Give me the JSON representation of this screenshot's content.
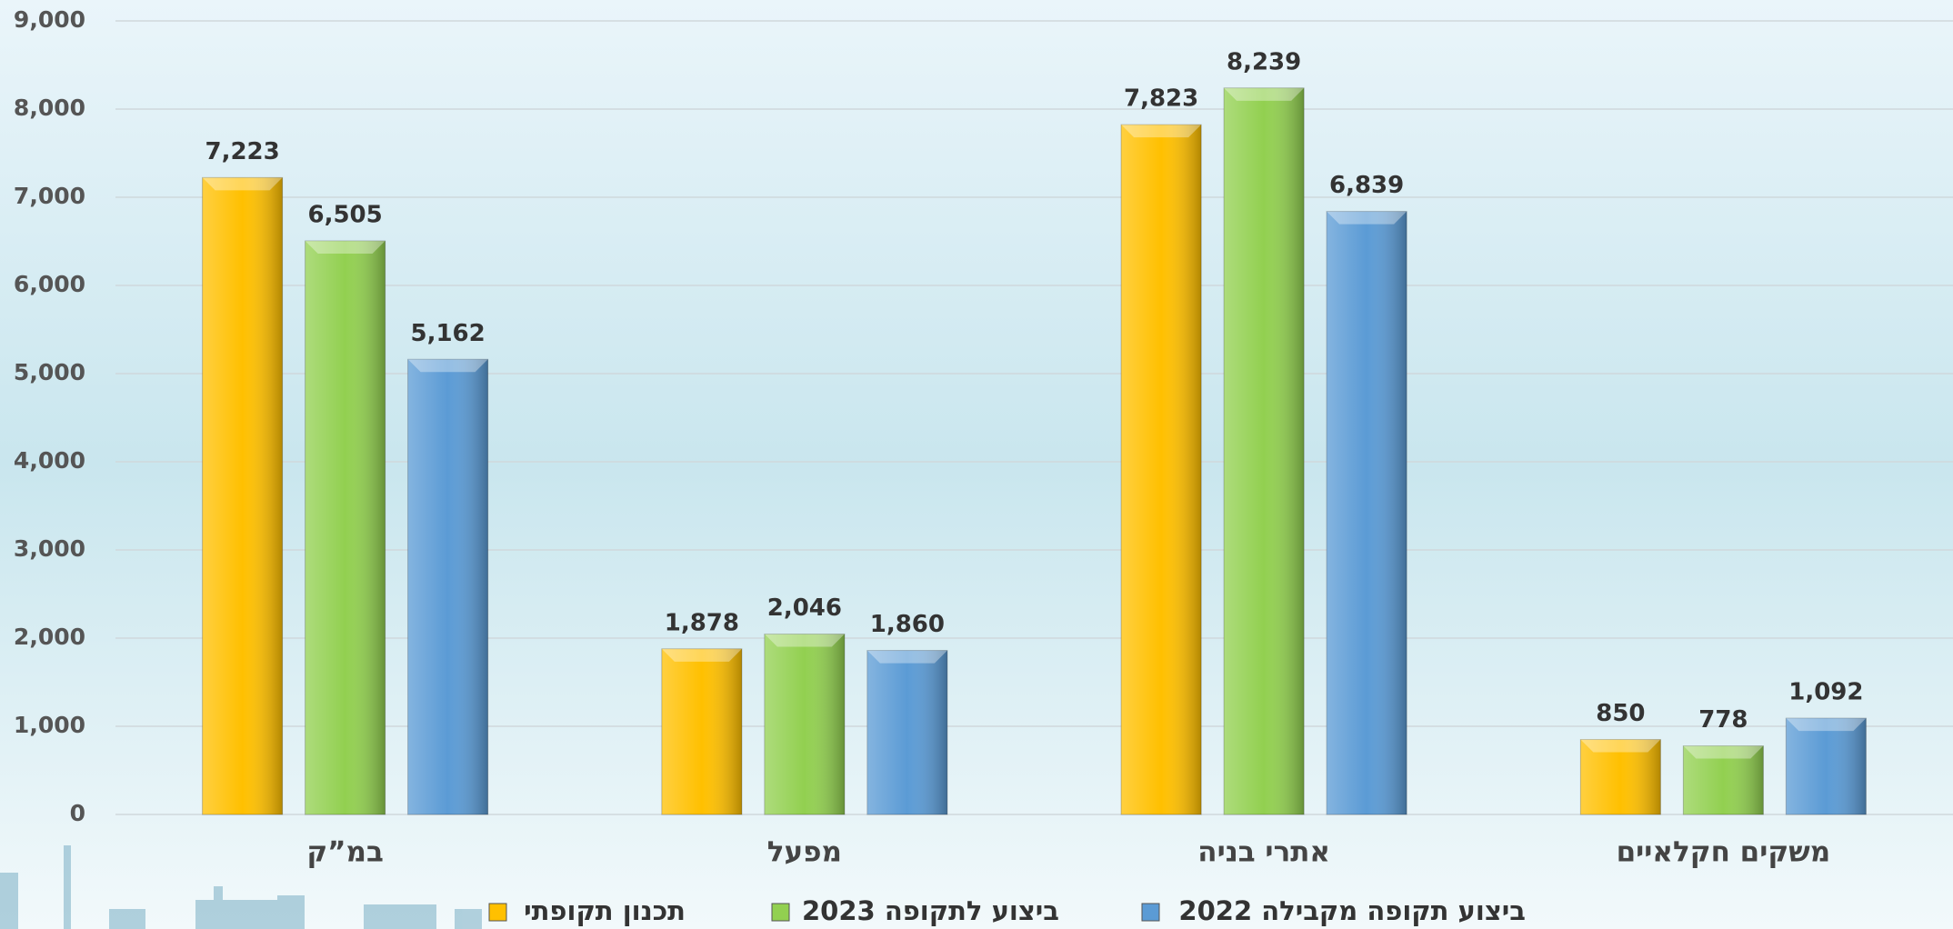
{
  "chart_data": {
    "type": "bar",
    "categories": [
      "במ”ק",
      "מפעל",
      "אתרי בניה",
      "משקים חקלאיים"
    ],
    "series": [
      {
        "name": "תכנון תקופתי",
        "color": "#ffc000",
        "values": [
          7223,
          1878,
          7823,
          850
        ],
        "value_labels": [
          "7,223",
          "1,878",
          "7,823",
          "850"
        ]
      },
      {
        "name": "ביצוע לתקופה 2023",
        "color": "#92d050",
        "values": [
          6505,
          2046,
          8239,
          778
        ],
        "value_labels": [
          "6,505",
          "2,046",
          "8,239",
          "778"
        ]
      },
      {
        "name": "ביצוע תקופה מקבילה 2022",
        "color": "#5b9bd5",
        "values": [
          5162,
          1860,
          6839,
          1092
        ],
        "value_labels": [
          "5,162",
          "1,860",
          "6,839",
          "1,092"
        ]
      }
    ],
    "ylim": [
      0,
      9000
    ],
    "yticks": [
      0,
      {
        "value": 1000,
        "label": "1,000"
      },
      {
        "value": 2000,
        "label": "2,000"
      },
      {
        "value": 3000,
        "label": "3,000"
      },
      {
        "value": 4000,
        "label": "4,000"
      },
      {
        "value": 5000,
        "label": "5,000"
      },
      {
        "value": 6000,
        "label": "6,000"
      },
      {
        "value": 7000,
        "label": "7,000"
      },
      {
        "value": 8000,
        "label": "8,000"
      },
      {
        "value": 9000,
        "label": "9,000"
      }
    ],
    "grid": true,
    "legend": "bottom"
  }
}
